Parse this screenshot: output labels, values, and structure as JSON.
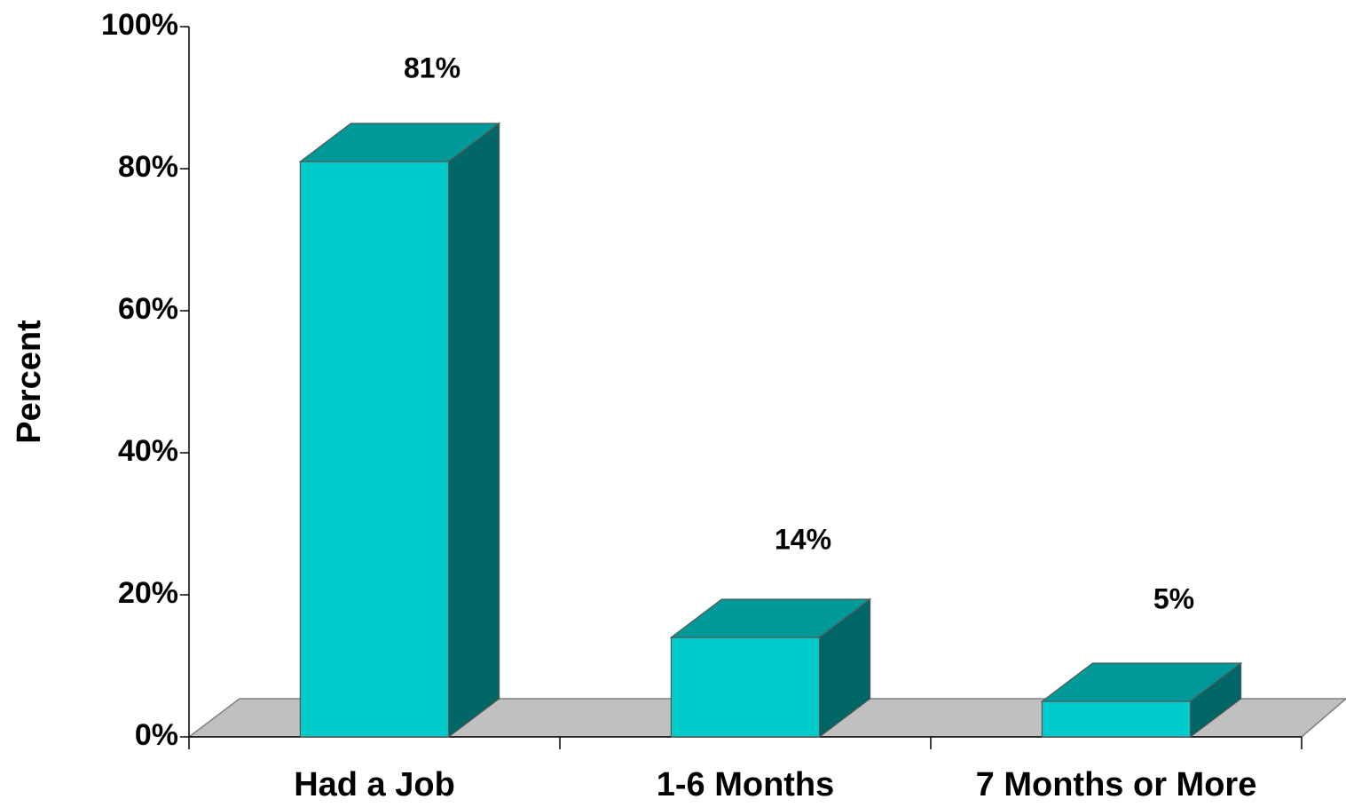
{
  "chart_data": {
    "type": "bar3d",
    "y_label": "Percent",
    "categories": [
      "Had a Job",
      "1-6 Months",
      "7 Months or More"
    ],
    "values": [
      81,
      14,
      5
    ],
    "value_labels": [
      "81%",
      "14%",
      "5%"
    ],
    "color": "#00CCCC",
    "ylim": [
      0,
      100
    ],
    "yticks": [
      {
        "value": 0,
        "label": "0%"
      },
      {
        "value": 20,
        "label": "20%"
      },
      {
        "value": 40,
        "label": "40%"
      },
      {
        "value": 60,
        "label": "60%"
      },
      {
        "value": 80,
        "label": "80%"
      },
      {
        "value": 100,
        "label": "100%"
      }
    ]
  }
}
